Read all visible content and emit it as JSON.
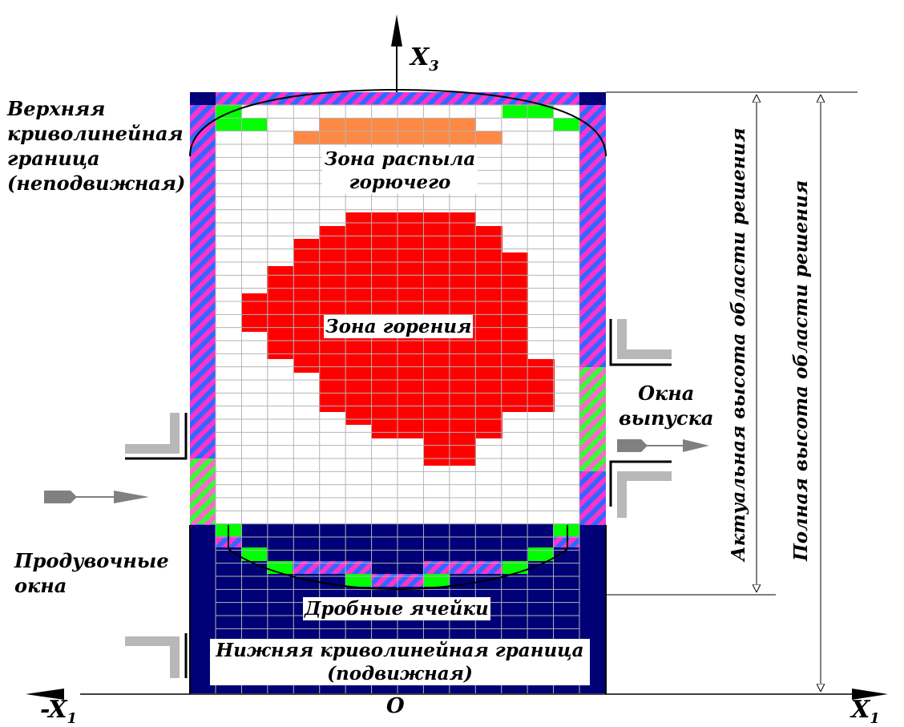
{
  "labels": {
    "top_boundary": [
      "Верхняя",
      "криволинейная",
      "граница",
      "(неподвижная)"
    ],
    "spray_zone": [
      "Зона распыла",
      "горючего"
    ],
    "combustion_zone": "Зона горения",
    "exhaust_windows": [
      "Окна",
      "выпуска"
    ],
    "scavenge_windows": [
      "Продувочные",
      "окна"
    ],
    "fractional_cells": "Дробные ячейки",
    "bottom_boundary": [
      "Нижняя криволинейная граница",
      "(подвижная)"
    ],
    "actual_height": "Актуальная высота области решения",
    "full_height": "Полная высота области решения"
  },
  "axes": {
    "x3": "X",
    "x3_sub": "3",
    "x1": "X",
    "x1_sub": "1",
    "neg_x1": "-X",
    "neg_x1_sub": "1",
    "origin": "O"
  },
  "colors": {
    "grid_line": "#b4b4b4",
    "wall_blue": "#3366ff",
    "wall_magenta": "#ff33cc",
    "wall_green": "#33ff33",
    "piston_navy": "#000077",
    "combustion_red": "#ff0000",
    "spray_orange": "#ff8844",
    "fractional_green": "#00ff00",
    "port_gray": "#b8b8b8",
    "arrow_gray": "#808080"
  }
}
